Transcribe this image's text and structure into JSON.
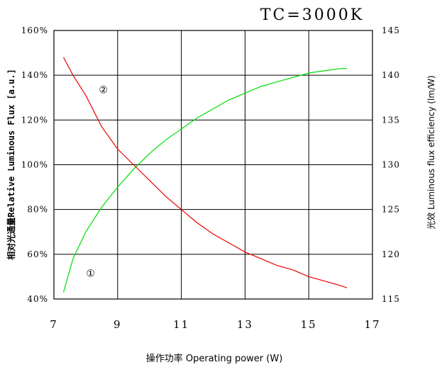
{
  "chart_data": {
    "type": "line",
    "title": "TC=3000K",
    "xlabel": "操作功率 Operating power (W)",
    "ylabel_left": "相对光通量Relative Luminous Flux [a.u.]",
    "ylabel_right": "光效 Luminous flux efficiency (lm/W)",
    "xlim": [
      7,
      17
    ],
    "ylim_left": [
      40,
      160
    ],
    "ylim_right": [
      115,
      145
    ],
    "x_ticks": [
      "7",
      "9",
      "11",
      "13",
      "15",
      "17"
    ],
    "y_left_ticks": [
      "40%",
      "60%",
      "80%",
      "100%",
      "120%",
      "140%",
      "160%"
    ],
    "y_right_ticks": [
      "115",
      "120",
      "125",
      "130",
      "135",
      "140",
      "145"
    ],
    "grid": true,
    "series": [
      {
        "name": "①",
        "color": "#00dd00",
        "axis": "left",
        "x": [
          7.3,
          7.6,
          8.0,
          8.5,
          9.0,
          9.5,
          10.0,
          10.5,
          11.0,
          11.5,
          12.0,
          12.5,
          13.0,
          13.5,
          14.0,
          14.5,
          15.0,
          15.5,
          16.0,
          16.2
        ],
        "y": [
          43,
          58,
          70,
          81,
          90,
          98,
          105,
          111,
          116,
          121,
          125,
          129,
          132,
          135,
          137,
          139,
          141,
          142,
          143,
          143
        ]
      },
      {
        "name": "②",
        "color": "#ee0000",
        "axis": "left",
        "x": [
          7.3,
          7.6,
          8.0,
          8.5,
          9.0,
          9.5,
          10.0,
          10.5,
          11.0,
          11.5,
          12.0,
          12.5,
          13.0,
          13.5,
          14.0,
          14.5,
          15.0,
          15.5,
          16.0,
          16.2
        ],
        "y": [
          148,
          140,
          131,
          117,
          107,
          100,
          93,
          86,
          80,
          74,
          69,
          65,
          61,
          58,
          55,
          53,
          50,
          48,
          46,
          45
        ]
      }
    ],
    "annotations": [
      {
        "text": "②",
        "x": 8.55,
        "y": 132
      },
      {
        "text": "①",
        "x": 8.15,
        "y": 50
      }
    ]
  }
}
